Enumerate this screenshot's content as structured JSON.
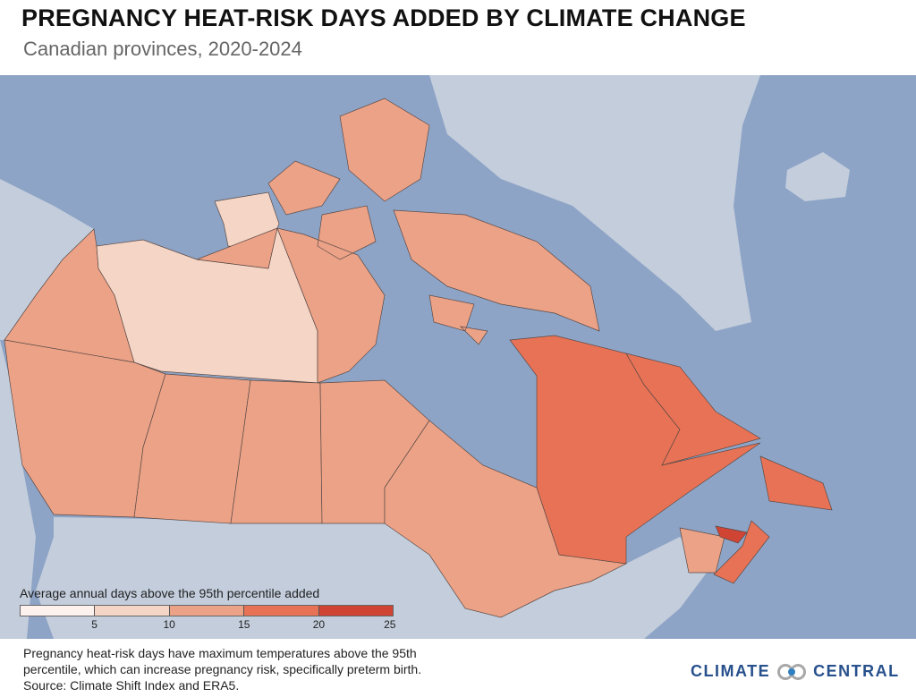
{
  "header": {
    "title": "PREGNANCY HEAT-RISK DAYS ADDED BY CLIMATE CHANGE",
    "subtitle": "Canadian provinces, 2020-2024"
  },
  "colors": {
    "ocean": "#8ea4c6",
    "other_land": "#c3cddc",
    "bin_0_5": "#fdf2ee",
    "bin_5_10": "#f5d5c5",
    "bin_10_15": "#eca287",
    "bin_15_20": "#e87255",
    "bin_20_25": "#d04434"
  },
  "map": {
    "regions": {
      "yukon": "10-15",
      "northwest_territories": "5-10",
      "nunavut": "10-15",
      "british_columbia": "10-15",
      "alberta": "10-15",
      "saskatchewan": "10-15",
      "manitoba": "10-15",
      "ontario": "10-15",
      "quebec": "15-20",
      "newfoundland_and_labrador": "15-20",
      "new_brunswick": "10-15",
      "nova_scotia": "15-20",
      "prince_edward_island": "20-25"
    }
  },
  "legend": {
    "title": "Average annual days above the 95th percentile added",
    "ticks": [
      "5",
      "10",
      "15",
      "20",
      "25"
    ]
  },
  "footer": {
    "line1": "Pregnancy heat-risk days have maximum temperatures above the 95th",
    "line2": "percentile, which can increase pregnancy risk, specifically preterm birth.",
    "line3": "Source: Climate Shift Index and ERA5."
  },
  "logo": {
    "left": "CLIMATE",
    "right": "CENTRAL"
  }
}
